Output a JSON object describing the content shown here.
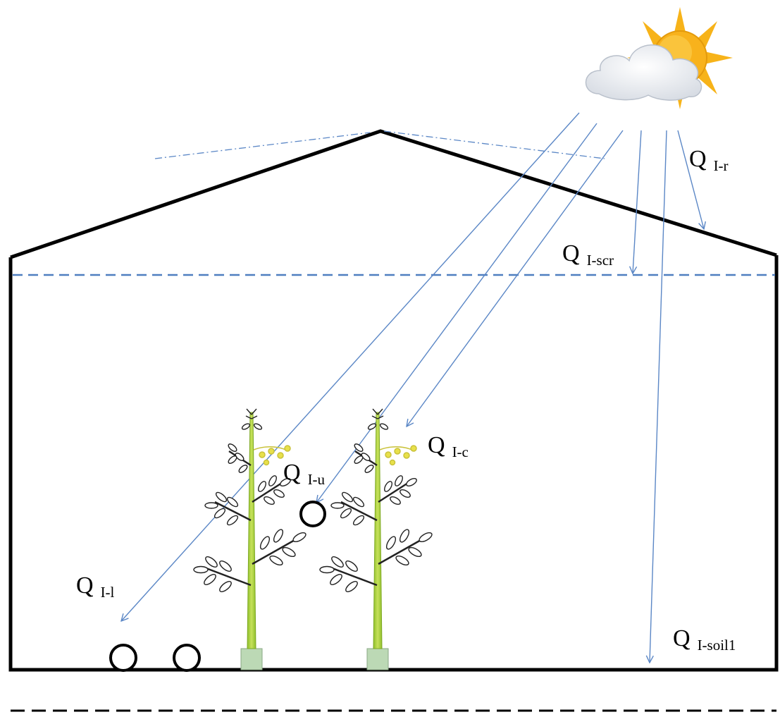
{
  "labels": {
    "q_i_r": {
      "main": "Q",
      "sub": "I-r"
    },
    "q_i_scr": {
      "main": "Q",
      "sub": "I-scr"
    },
    "q_i_c": {
      "main": "Q",
      "sub": "I-c"
    },
    "q_i_u": {
      "main": "Q",
      "sub": "I-u"
    },
    "q_i_l": {
      "main": "Q",
      "sub": "I-l"
    },
    "q_i_soil1": {
      "main": "Q",
      "sub": "I-soil1"
    }
  },
  "colors": {
    "structure": "#000000",
    "radiation_arrow": "#5b87c6",
    "screen_line": "#4f7fc0",
    "sun": "#f7b319",
    "cloud": "#e6e9ee",
    "plant_stem": "#9acd32",
    "plant_pot": "#bcd9b5",
    "flower": "#e8e04a"
  }
}
